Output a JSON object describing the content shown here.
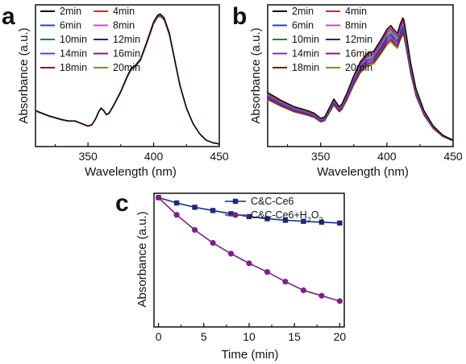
{
  "chart_data": [
    {
      "panel": "a",
      "type": "line",
      "xlabel": "Wavelength (nm)",
      "ylabel": "Absorbance (a.u.)",
      "xlim": [
        310,
        450
      ],
      "ylim": [
        0,
        1.1
      ],
      "xticks": [
        350,
        400,
        450
      ],
      "legend_position": "top-left",
      "legend_cols": 2,
      "series_spectrum": {
        "x": [
          310,
          320,
          330,
          335,
          340,
          345,
          350,
          353,
          356,
          358,
          360,
          362,
          364,
          366,
          370,
          375,
          380,
          383,
          386,
          390,
          395,
          400,
          403,
          405,
          408,
          412,
          416,
          420,
          425,
          430,
          435,
          440,
          445,
          450
        ],
        "y": [
          0.28,
          0.24,
          0.21,
          0.2,
          0.2,
          0.18,
          0.16,
          0.17,
          0.22,
          0.27,
          0.3,
          0.28,
          0.25,
          0.26,
          0.33,
          0.43,
          0.55,
          0.61,
          0.63,
          0.68,
          0.82,
          0.97,
          1.02,
          1.03,
          1.0,
          0.88,
          0.68,
          0.48,
          0.3,
          0.18,
          0.1,
          0.05,
          0.03,
          0.02
        ]
      },
      "series": [
        {
          "name": "2min",
          "color": "#000000",
          "scale": 1.0
        },
        {
          "name": "4min",
          "color": "#e8201c",
          "scale": 0.998
        },
        {
          "name": "6min",
          "color": "#2040e0",
          "scale": 0.996
        },
        {
          "name": "8min",
          "color": "#e040e0",
          "scale": 0.994
        },
        {
          "name": "10min",
          "color": "#1a8a2a",
          "scale": 0.992
        },
        {
          "name": "12min",
          "color": "#1a2a8a",
          "scale": 0.99
        },
        {
          "name": "14min",
          "color": "#7b2ee0",
          "scale": 0.988
        },
        {
          "name": "16min",
          "color": "#8a1a8a",
          "scale": 0.986
        },
        {
          "name": "18min",
          "color": "#8a1010",
          "scale": 0.984
        },
        {
          "name": "20min",
          "color": "#8a8a10",
          "scale": 0.982
        }
      ]
    },
    {
      "panel": "b",
      "type": "line",
      "xlabel": "Wavelength (nm)",
      "ylabel": "Absorbance (a.u.)",
      "xlim": [
        310,
        450
      ],
      "ylim": [
        0,
        1.1
      ],
      "xticks": [
        350,
        400,
        450
      ],
      "legend_position": "top-left",
      "legend_cols": 2,
      "series_spectrum": {
        "x": [
          310,
          320,
          330,
          340,
          345,
          350,
          353,
          356,
          360,
          362,
          364,
          366,
          370,
          375,
          380,
          385,
          390,
          395,
          400,
          403,
          406,
          408,
          410,
          412,
          413,
          415,
          418,
          422,
          428,
          435,
          442,
          450
        ],
        "y": [
          0.42,
          0.36,
          0.31,
          0.28,
          0.26,
          0.22,
          0.23,
          0.29,
          0.37,
          0.34,
          0.31,
          0.33,
          0.42,
          0.55,
          0.66,
          0.72,
          0.74,
          0.82,
          0.91,
          0.94,
          0.9,
          0.88,
          0.95,
          1.0,
          0.98,
          0.85,
          0.65,
          0.45,
          0.28,
          0.16,
          0.09,
          0.05
        ]
      },
      "series": [
        {
          "name": "2min",
          "color": "#000000",
          "scale": 1.0
        },
        {
          "name": "4min",
          "color": "#e8201c",
          "scale": 0.985
        },
        {
          "name": "6min",
          "color": "#2040e0",
          "scale": 0.97
        },
        {
          "name": "8min",
          "color": "#e040e0",
          "scale": 0.955
        },
        {
          "name": "10min",
          "color": "#1a8a2a",
          "scale": 0.94
        },
        {
          "name": "12min",
          "color": "#1a2a8a",
          "scale": 0.925
        },
        {
          "name": "14min",
          "color": "#7b2ee0",
          "scale": 0.91
        },
        {
          "name": "16min",
          "color": "#8a1a8a",
          "scale": 0.895
        },
        {
          "name": "18min",
          "color": "#8a1010",
          "scale": 0.88
        },
        {
          "name": "20min",
          "color": "#8a8a10",
          "scale": 0.865
        }
      ]
    },
    {
      "panel": "c",
      "type": "line",
      "xlabel": "Time (min)",
      "ylabel": "Absorbance (a.u.)",
      "xlim": [
        -0.5,
        20.5
      ],
      "ylim": [
        0.4,
        1.02
      ],
      "xticks": [
        0,
        5,
        10,
        15,
        20
      ],
      "legend_position": "top-right",
      "x": [
        0,
        2,
        4,
        6,
        8,
        10,
        12,
        14,
        16,
        18,
        20
      ],
      "series": [
        {
          "name": "C&C-Ce6",
          "color": "#1a2a80",
          "marker": "square",
          "values": [
            1.0,
            0.975,
            0.955,
            0.94,
            0.925,
            0.912,
            0.902,
            0.895,
            0.89,
            0.886,
            0.882
          ]
        },
        {
          "name": "C&C-Ce6+H2O2",
          "name_base": "C&C-Ce6+H",
          "name_sub1": "2",
          "name_mid": "O",
          "name_sub2": "2",
          "color": "#7e1f86",
          "marker": "circle",
          "values": [
            1.0,
            0.92,
            0.85,
            0.79,
            0.74,
            0.695,
            0.655,
            0.61,
            0.57,
            0.545,
            0.52
          ]
        }
      ]
    }
  ],
  "panels": {
    "a": {
      "letter": "a"
    },
    "b": {
      "letter": "b"
    },
    "c": {
      "letter": "c"
    }
  }
}
